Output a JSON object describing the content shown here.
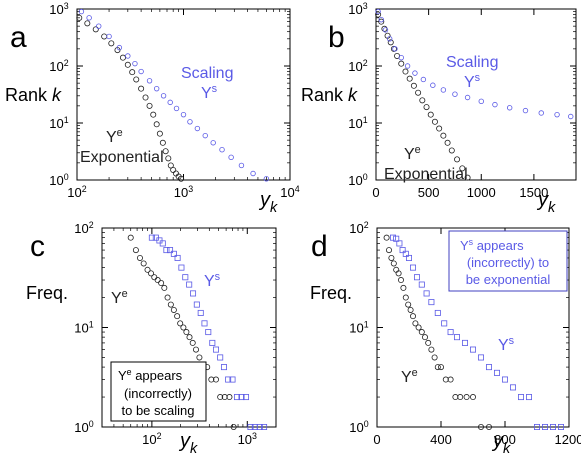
{
  "colors": {
    "exponential": "#222222",
    "scaling": "#5a5ae6",
    "axis": "#000000",
    "box_border": "#4040c0"
  },
  "chart_data": [
    {
      "panel": "a",
      "type": "scatter",
      "xscale": "log",
      "yscale": "log",
      "xlim": [
        100,
        10000
      ],
      "ylim": [
        1,
        1000
      ],
      "xticks": [
        100,
        1000,
        10000
      ],
      "xtick_labels": [
        "10",
        "10",
        "10"
      ],
      "xtick_exps": [
        "2",
        "3",
        "4"
      ],
      "yticks": [
        1,
        10,
        100,
        1000
      ],
      "ytick_labels": [
        "10",
        "10",
        "10",
        "10"
      ],
      "ytick_exps": [
        "0",
        "1",
        "2",
        "3"
      ],
      "xlabel": "y",
      "xlabel_sub": "k",
      "ylabel": "Rank",
      "ylabel_var": "k",
      "series": [
        {
          "key": "exponential",
          "x": [
            105,
            125,
            150,
            180,
            210,
            240,
            270,
            300,
            330,
            360,
            400,
            440,
            480,
            520,
            560,
            600,
            640,
            680,
            720,
            760,
            800,
            850,
            900,
            950
          ],
          "y": [
            700,
            560,
            440,
            330,
            250,
            190,
            140,
            105,
            78,
            58,
            40,
            28,
            20,
            14,
            9.5,
            6.5,
            4.5,
            3.2,
            2.4,
            1.8,
            1.5,
            1.3,
            1.15,
            1.05
          ]
        },
        {
          "key": "scaling",
          "x": [
            110,
            130,
            160,
            200,
            250,
            300,
            350,
            400,
            480,
            560,
            650,
            750,
            860,
            1000,
            1150,
            1350,
            1600,
            1900,
            2300,
            2800,
            3500,
            4500,
            6000
          ],
          "y": [
            900,
            700,
            500,
            330,
            210,
            150,
            110,
            80,
            55,
            40,
            30,
            23,
            18,
            14,
            10.5,
            8,
            6,
            4.5,
            3.4,
            2.5,
            1.8,
            1.3,
            1.05
          ]
        }
      ],
      "labels": {
        "series_s": "Scaling",
        "series_s_sym": "Y",
        "series_s_sup": "s",
        "series_e_sym": "Y",
        "series_e_sup": "e",
        "series_e": "Exponential"
      }
    },
    {
      "panel": "b",
      "type": "scatter",
      "xscale": "linear",
      "yscale": "log",
      "xlim": [
        0,
        1900
      ],
      "ylim": [
        1,
        1000
      ],
      "xticks": [
        0,
        500,
        1000,
        1500
      ],
      "xtick_labels": [
        "0",
        "500",
        "1000",
        "1500"
      ],
      "yticks": [
        1,
        10,
        100,
        1000
      ],
      "ytick_labels": [
        "10",
        "10",
        "10",
        "10"
      ],
      "ytick_exps": [
        "0",
        "1",
        "2",
        "3"
      ],
      "xlabel": "y",
      "xlabel_sub": "k",
      "ylabel": "Rank",
      "ylabel_var": "k",
      "series": [
        {
          "key": "exponential",
          "x": [
            20,
            50,
            80,
            110,
            140,
            170,
            200,
            240,
            280,
            320,
            360,
            400,
            440,
            480,
            520,
            560,
            600,
            640,
            680,
            720,
            770,
            820,
            870
          ],
          "y": [
            800,
            600,
            450,
            340,
            260,
            200,
            150,
            110,
            80,
            60,
            45,
            34,
            25,
            19,
            14,
            10.5,
            8,
            6,
            4.5,
            3.3,
            2.3,
            1.6,
            1.1
          ]
        },
        {
          "key": "scaling",
          "x": [
            20,
            50,
            90,
            130,
            180,
            240,
            300,
            370,
            450,
            540,
            640,
            750,
            870,
            1000,
            1130,
            1270,
            1420,
            1570,
            1720,
            1850
          ],
          "y": [
            900,
            650,
            430,
            300,
            200,
            140,
            100,
            75,
            58,
            46,
            38,
            32,
            28,
            24,
            21,
            18.5,
            16.5,
            15,
            14,
            13
          ]
        }
      ],
      "labels": {
        "series_s": "Scaling",
        "series_s_sym": "Y",
        "series_s_sup": "s",
        "series_e_sym": "Y",
        "series_e_sup": "e",
        "series_e": "Exponential"
      }
    },
    {
      "panel": "c",
      "type": "scatter",
      "xscale": "log",
      "yscale": "log",
      "xlim": [
        30,
        2000
      ],
      "ylim": [
        1,
        100
      ],
      "xticks": [
        100,
        1000
      ],
      "xtick_labels": [
        "10",
        "10"
      ],
      "xtick_exps": [
        "2",
        "3"
      ],
      "yticks": [
        1,
        10,
        100
      ],
      "ytick_labels": [
        "10",
        "10",
        "10"
      ],
      "ytick_exps": [
        "0",
        "1",
        "2"
      ],
      "xlabel": "y",
      "xlabel_sub": "k",
      "ylabel": "Freq.",
      "series": [
        {
          "key": "exponential",
          "x": [
            60,
            68,
            75,
            82,
            90,
            98,
            106,
            115,
            125,
            135,
            146,
            158,
            170,
            184,
            198,
            214,
            230,
            248,
            268,
            290,
            315,
            345,
            380,
            420,
            470,
            520,
            580,
            650,
            720
          ],
          "y": [
            80,
            60,
            50,
            44,
            38,
            35,
            32,
            30,
            28,
            25,
            20,
            17,
            15,
            13,
            11,
            10,
            9,
            8,
            7,
            6,
            5,
            4,
            4,
            3,
            3,
            2,
            2,
            2,
            1
          ]
        },
        {
          "key": "scaling",
          "x": [
            100,
            110,
            120,
            130,
            142,
            155,
            170,
            186,
            204,
            224,
            246,
            270,
            296,
            325,
            356,
            390,
            430,
            470,
            520,
            570,
            630,
            700,
            780,
            870,
            970,
            1080,
            1200,
            1350,
            1500
          ],
          "y": [
            80,
            80,
            75,
            70,
            60,
            60,
            55,
            50,
            40,
            32,
            27,
            22,
            17,
            14,
            11,
            9,
            7,
            6,
            5,
            4,
            3,
            3,
            2,
            2,
            2,
            1,
            1,
            1,
            1
          ]
        }
      ],
      "labels": {
        "series_s_sym": "Y",
        "series_s_sup": "s",
        "series_e_sym": "Y",
        "series_e_sup": "e",
        "box_line1_sym": "Y",
        "box_line1_sup": "e",
        "box_line1": " appears",
        "box_line2": "(incorrectly)",
        "box_line3": "to be scaling"
      }
    },
    {
      "panel": "d",
      "type": "scatter",
      "xscale": "linear",
      "yscale": "log",
      "xlim": [
        0,
        1200
      ],
      "ylim": [
        1,
        100
      ],
      "xticks": [
        0,
        400,
        800,
        1200
      ],
      "xtick_labels": [
        "0",
        "400",
        "800",
        "1200"
      ],
      "yticks": [
        1,
        10,
        100
      ],
      "ytick_labels": [
        "10",
        "10",
        "10"
      ],
      "ytick_exps": [
        "0",
        "1",
        "2"
      ],
      "xlabel": "y",
      "xlabel_sub": "k",
      "ylabel": "Freq.",
      "series": [
        {
          "key": "exponential",
          "x": [
            60,
            75,
            90,
            105,
            120,
            135,
            150,
            165,
            180,
            195,
            210,
            225,
            240,
            260,
            280,
            300,
            320,
            340,
            360,
            380,
            400,
            430,
            460,
            490,
            520,
            560,
            600,
            650,
            700
          ],
          "y": [
            80,
            60,
            50,
            44,
            38,
            35,
            30,
            25,
            20,
            17,
            15,
            13,
            11,
            10,
            9,
            8,
            7,
            6,
            5,
            4,
            4,
            3,
            3,
            2,
            2,
            2,
            2,
            1,
            1
          ]
        },
        {
          "key": "scaling",
          "x": [
            100,
            120,
            140,
            160,
            180,
            200,
            225,
            250,
            280,
            310,
            340,
            380,
            420,
            460,
            500,
            550,
            600,
            650,
            700,
            750,
            800,
            850,
            900,
            950,
            1000,
            1050,
            1100,
            1150
          ],
          "y": [
            80,
            78,
            70,
            60,
            55,
            50,
            40,
            32,
            27,
            22,
            18,
            14,
            11,
            9,
            8,
            7,
            6,
            5,
            4,
            3.5,
            3,
            2.5,
            2,
            2,
            1,
            1,
            1,
            1
          ]
        }
      ],
      "labels": {
        "series_s_sym": "Y",
        "series_s_sup": "s",
        "series_e_sym": "Y",
        "series_e_sup": "e",
        "box_line1_sym": "Y",
        "box_line1_sup": "s",
        "box_line1": " appears",
        "box_line2": "(incorrectly) to",
        "box_line3": "be exponential"
      }
    }
  ]
}
